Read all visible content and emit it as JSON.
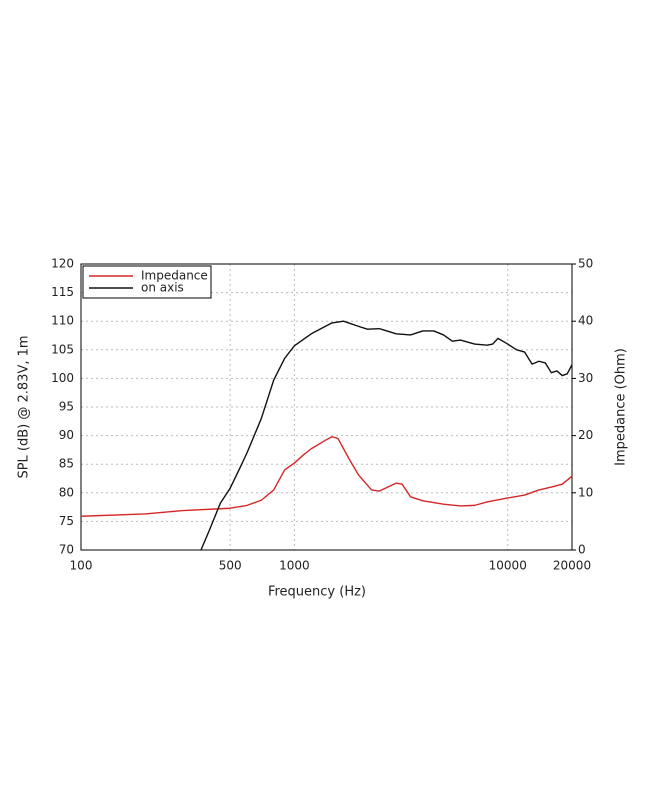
{
  "chart_data": {
    "type": "line",
    "xlabel": "Frequency (Hz)",
    "ylabel": "SPL (dB) @ 2.83V, 1m",
    "y2label": "Impedance (Ohm)",
    "xscale": "log",
    "xlim": [
      100,
      20000
    ],
    "xticks": [
      100,
      500,
      1000,
      10000,
      20000
    ],
    "ylim": [
      70,
      120
    ],
    "yticks": [
      70,
      75,
      80,
      85,
      90,
      95,
      100,
      105,
      110,
      115,
      120
    ],
    "y2lim": [
      0,
      50
    ],
    "y2ticks": [
      0,
      10,
      20,
      30,
      40,
      50
    ],
    "grid": true,
    "legend": "upper left",
    "series": [
      {
        "name": "Impedance",
        "color": "#d62728",
        "axis": "y2",
        "x": [
          100,
          200,
          300,
          500,
          600,
          700,
          800,
          900,
          1000,
          1100,
          1200,
          1400,
          1500,
          1600,
          1800,
          2000,
          2300,
          2500,
          3000,
          3200,
          3500,
          4000,
          5000,
          6000,
          7000,
          8000,
          10000,
          12000,
          14000,
          16000,
          18000,
          20000
        ],
        "values": [
          5.9,
          6.3,
          6.9,
          7.3,
          7.8,
          8.7,
          10.5,
          14,
          15.2,
          16.6,
          17.7,
          19.2,
          19.8,
          19.5,
          16,
          13.1,
          10.5,
          10.3,
          11.7,
          11.5,
          9.3,
          8.6,
          8,
          7.7,
          7.8,
          8.4,
          9.1,
          9.6,
          10.5,
          11,
          11.5,
          12.9
        ]
      },
      {
        "name": "on axis",
        "color": "#111111",
        "x": [
          365,
          400,
          450,
          500,
          550,
          600,
          700,
          800,
          900,
          1000,
          1200,
          1500,
          1700,
          2000,
          2200,
          2500,
          3000,
          3500,
          4000,
          4500,
          5000,
          5500,
          6000,
          7000,
          8000,
          8500,
          9000,
          10000,
          11000,
          12000,
          13000,
          14000,
          15000,
          16000,
          17000,
          18000,
          19000,
          20000
        ],
        "values": [
          70,
          73.5,
          78.2,
          80.8,
          84,
          87,
          93,
          99.7,
          103.5,
          105.7,
          107.8,
          109.7,
          110,
          109.1,
          108.6,
          108.7,
          107.8,
          107.6,
          108.3,
          108.3,
          107.6,
          106.5,
          106.7,
          106,
          105.8,
          106,
          107,
          106,
          105,
          104.6,
          102.5,
          103,
          102.7,
          101,
          101.3,
          100.5,
          100.8,
          102.4
        ]
      }
    ]
  }
}
